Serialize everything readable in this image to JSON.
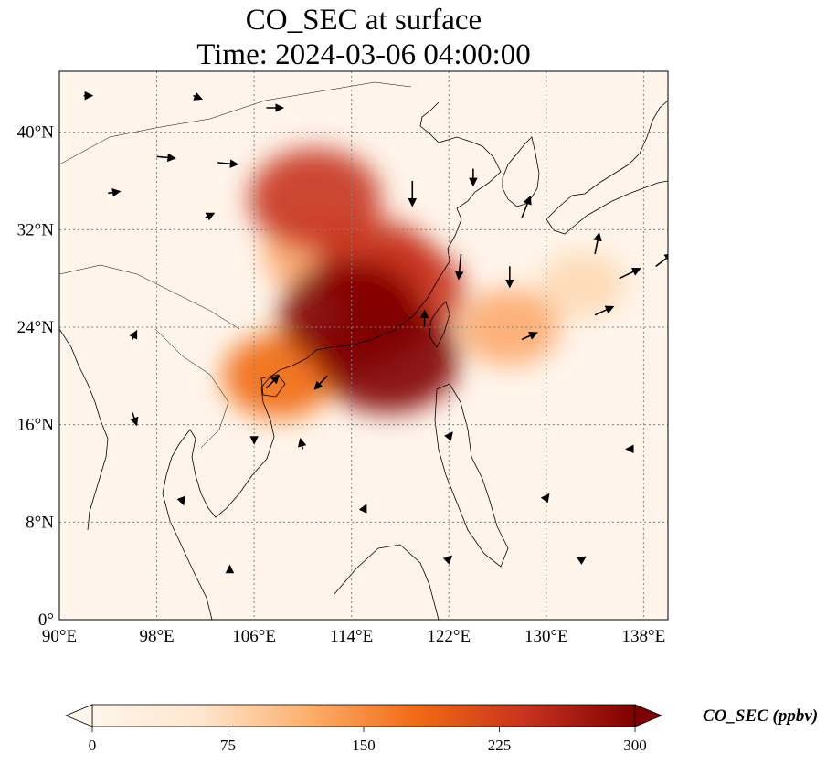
{
  "title": {
    "line1": "CO_SEC at surface",
    "line2": "Time: 2024-03-06 04:00:00"
  },
  "map": {
    "extent": {
      "lon_min": 90,
      "lon_max": 140,
      "lat_min": 0,
      "lat_max": 45
    },
    "gridlines": true,
    "background_color": "#fff5eb",
    "lat_ticks": [
      {
        "value": 0,
        "label": "0°"
      },
      {
        "value": 8,
        "label": "8°N"
      },
      {
        "value": 16,
        "label": "16°N"
      },
      {
        "value": 24,
        "label": "24°N"
      },
      {
        "value": 32,
        "label": "32°N"
      },
      {
        "value": 40,
        "label": "40°N"
      }
    ],
    "lon_ticks": [
      {
        "value": 90,
        "label": "90°E"
      },
      {
        "value": 98,
        "label": "98°E"
      },
      {
        "value": 106,
        "label": "106°E"
      },
      {
        "value": 114,
        "label": "114°E"
      },
      {
        "value": 122,
        "label": "122°E"
      },
      {
        "value": 130,
        "label": "130°E"
      },
      {
        "value": 138,
        "label": "138°E"
      }
    ]
  },
  "colorbar": {
    "label": "CO_SEC (ppbv)",
    "min": 0,
    "max": 300,
    "extend": "both",
    "colormap": "OrRd",
    "ticks": [
      "0",
      "75",
      "150",
      "225",
      "300"
    ],
    "colors": [
      "#fff5eb",
      "#fdd9b4",
      "#fdaa6f",
      "#f16913",
      "#c7331e",
      "#7f0000"
    ]
  },
  "plume": [
    {
      "lon": 111,
      "lat": 30,
      "level": 0.45
    },
    {
      "lon": 116,
      "lat": 29,
      "level": 0.7
    },
    {
      "lon": 114,
      "lat": 25,
      "level": 1.0
    },
    {
      "lon": 117,
      "lat": 21.5,
      "level": 1.0
    },
    {
      "lon": 118,
      "lat": 27,
      "level": 0.8
    },
    {
      "lon": 111,
      "lat": 34.5,
      "level": 0.85
    },
    {
      "lon": 108,
      "lat": 20,
      "level": 0.55
    },
    {
      "lon": 127,
      "lat": 24,
      "level": 0.4
    },
    {
      "lon": 133,
      "lat": 27.5,
      "level": 0.2
    }
  ],
  "wind_vectors": [
    {
      "lon": 92,
      "lat": 43,
      "u": 1,
      "v": 0
    },
    {
      "lon": 101,
      "lat": 43,
      "u": 1,
      "v": -0.4
    },
    {
      "lon": 107,
      "lat": 42,
      "u": 2,
      "v": 0
    },
    {
      "lon": 98,
      "lat": 38,
      "u": 2.2,
      "v": -0.2
    },
    {
      "lon": 103,
      "lat": 37.5,
      "u": 2.4,
      "v": -0.2
    },
    {
      "lon": 94,
      "lat": 35,
      "u": 1.4,
      "v": 0.2
    },
    {
      "lon": 102,
      "lat": 33,
      "u": 1,
      "v": 0.5
    },
    {
      "lon": 119,
      "lat": 36,
      "u": 0,
      "v": -3
    },
    {
      "lon": 124,
      "lat": 37,
      "u": 0,
      "v": -2
    },
    {
      "lon": 128,
      "lat": 33,
      "u": 1,
      "v": 2.5
    },
    {
      "lon": 123,
      "lat": 30,
      "u": -0.3,
      "v": -3
    },
    {
      "lon": 127,
      "lat": 29,
      "u": 0,
      "v": -2.5
    },
    {
      "lon": 134,
      "lat": 30,
      "u": 0.5,
      "v": 2.5
    },
    {
      "lon": 136,
      "lat": 28,
      "u": 2.5,
      "v": 1.2
    },
    {
      "lon": 139,
      "lat": 29,
      "u": 2,
      "v": 1.5
    },
    {
      "lon": 134,
      "lat": 25,
      "u": 2.2,
      "v": 1
    },
    {
      "lon": 128,
      "lat": 23,
      "u": 1.8,
      "v": 0.8
    },
    {
      "lon": 120,
      "lat": 24,
      "u": 0,
      "v": 2
    },
    {
      "lon": 112,
      "lat": 20,
      "u": -1.5,
      "v": -1.6
    },
    {
      "lon": 107,
      "lat": 19,
      "u": 1.5,
      "v": 1.5
    },
    {
      "lon": 96,
      "lat": 23,
      "u": 0.5,
      "v": 1
    },
    {
      "lon": 96,
      "lat": 17,
      "u": 0.5,
      "v": -1.5
    },
    {
      "lon": 106,
      "lat": 15,
      "u": 0,
      "v": -0.8
    },
    {
      "lon": 110,
      "lat": 14,
      "u": -0.3,
      "v": 1.2
    },
    {
      "lon": 122,
      "lat": 15,
      "u": 0.4,
      "v": 0.5
    },
    {
      "lon": 100,
      "lat": 10,
      "u": 0.3,
      "v": -0.8
    },
    {
      "lon": 115,
      "lat": 9,
      "u": 0.3,
      "v": 0.6
    },
    {
      "lon": 130,
      "lat": 10,
      "u": 0.3,
      "v": 0.4
    },
    {
      "lon": 137,
      "lat": 14,
      "u": -0.6,
      "v": 0
    },
    {
      "lon": 104,
      "lat": 4,
      "u": 0,
      "v": 0.6
    },
    {
      "lon": 122,
      "lat": 5,
      "u": 0.3,
      "v": 0.3
    },
    {
      "lon": 133,
      "lat": 5,
      "u": 0.3,
      "v": 0.2
    }
  ]
}
